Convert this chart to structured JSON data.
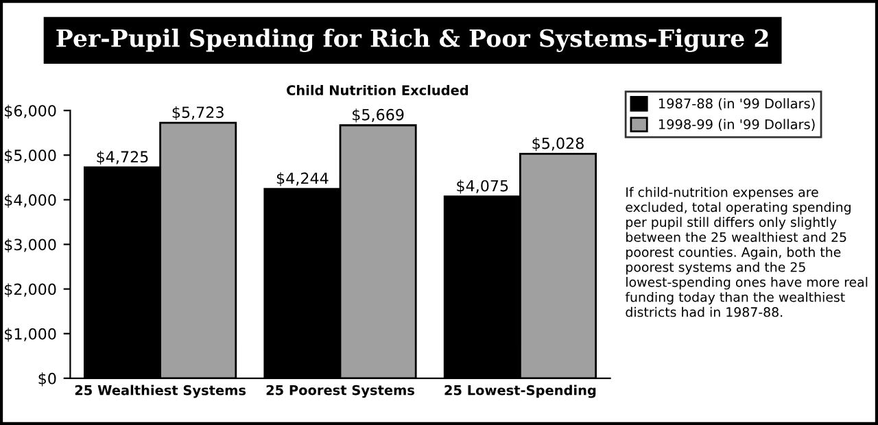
{
  "chart_data": {
    "type": "bar",
    "title": "Per-Pupil Spending for Rich & Poor Systems-Figure 2",
    "subtitle": "Child Nutrition Excluded",
    "categories": [
      "25 Wealthiest Systems",
      "25 Poorest Systems",
      "25 Lowest-Spending"
    ],
    "series": [
      {
        "name": "1987-88 (in '99 Dollars)",
        "color": "#000000",
        "values": [
          4725,
          4244,
          4075
        ],
        "value_labels": [
          "$4,725",
          "$4,244",
          "$4,075"
        ]
      },
      {
        "name": "1998-99 (in '99 Dollars)",
        "color": "#a0a0a0",
        "values": [
          5723,
          5669,
          5028
        ],
        "value_labels": [
          "$5,723",
          "$5,669",
          "$5,028"
        ]
      }
    ],
    "ylim": [
      0,
      6000
    ],
    "yticks": [
      {
        "value": 0,
        "label": "$0"
      },
      {
        "value": 1000,
        "label": "$1,000"
      },
      {
        "value": 2000,
        "label": "$2,000"
      },
      {
        "value": 3000,
        "label": "$3,000"
      },
      {
        "value": 4000,
        "label": "$4,000"
      },
      {
        "value": 5000,
        "label": "$5,000"
      },
      {
        "value": 6000,
        "label": "$6,000"
      }
    ],
    "grid": false,
    "legend": "top right",
    "annotations": [
      "If child-nutrition expenses are excluded, total operating spending per pupil still differs only slightly between the 25 wealthiest and 25 poorest counties. Again, both the poorest systems and the 25 lowest-spending ones have more real funding today than the wealthiest districts had in 1987-88."
    ]
  }
}
